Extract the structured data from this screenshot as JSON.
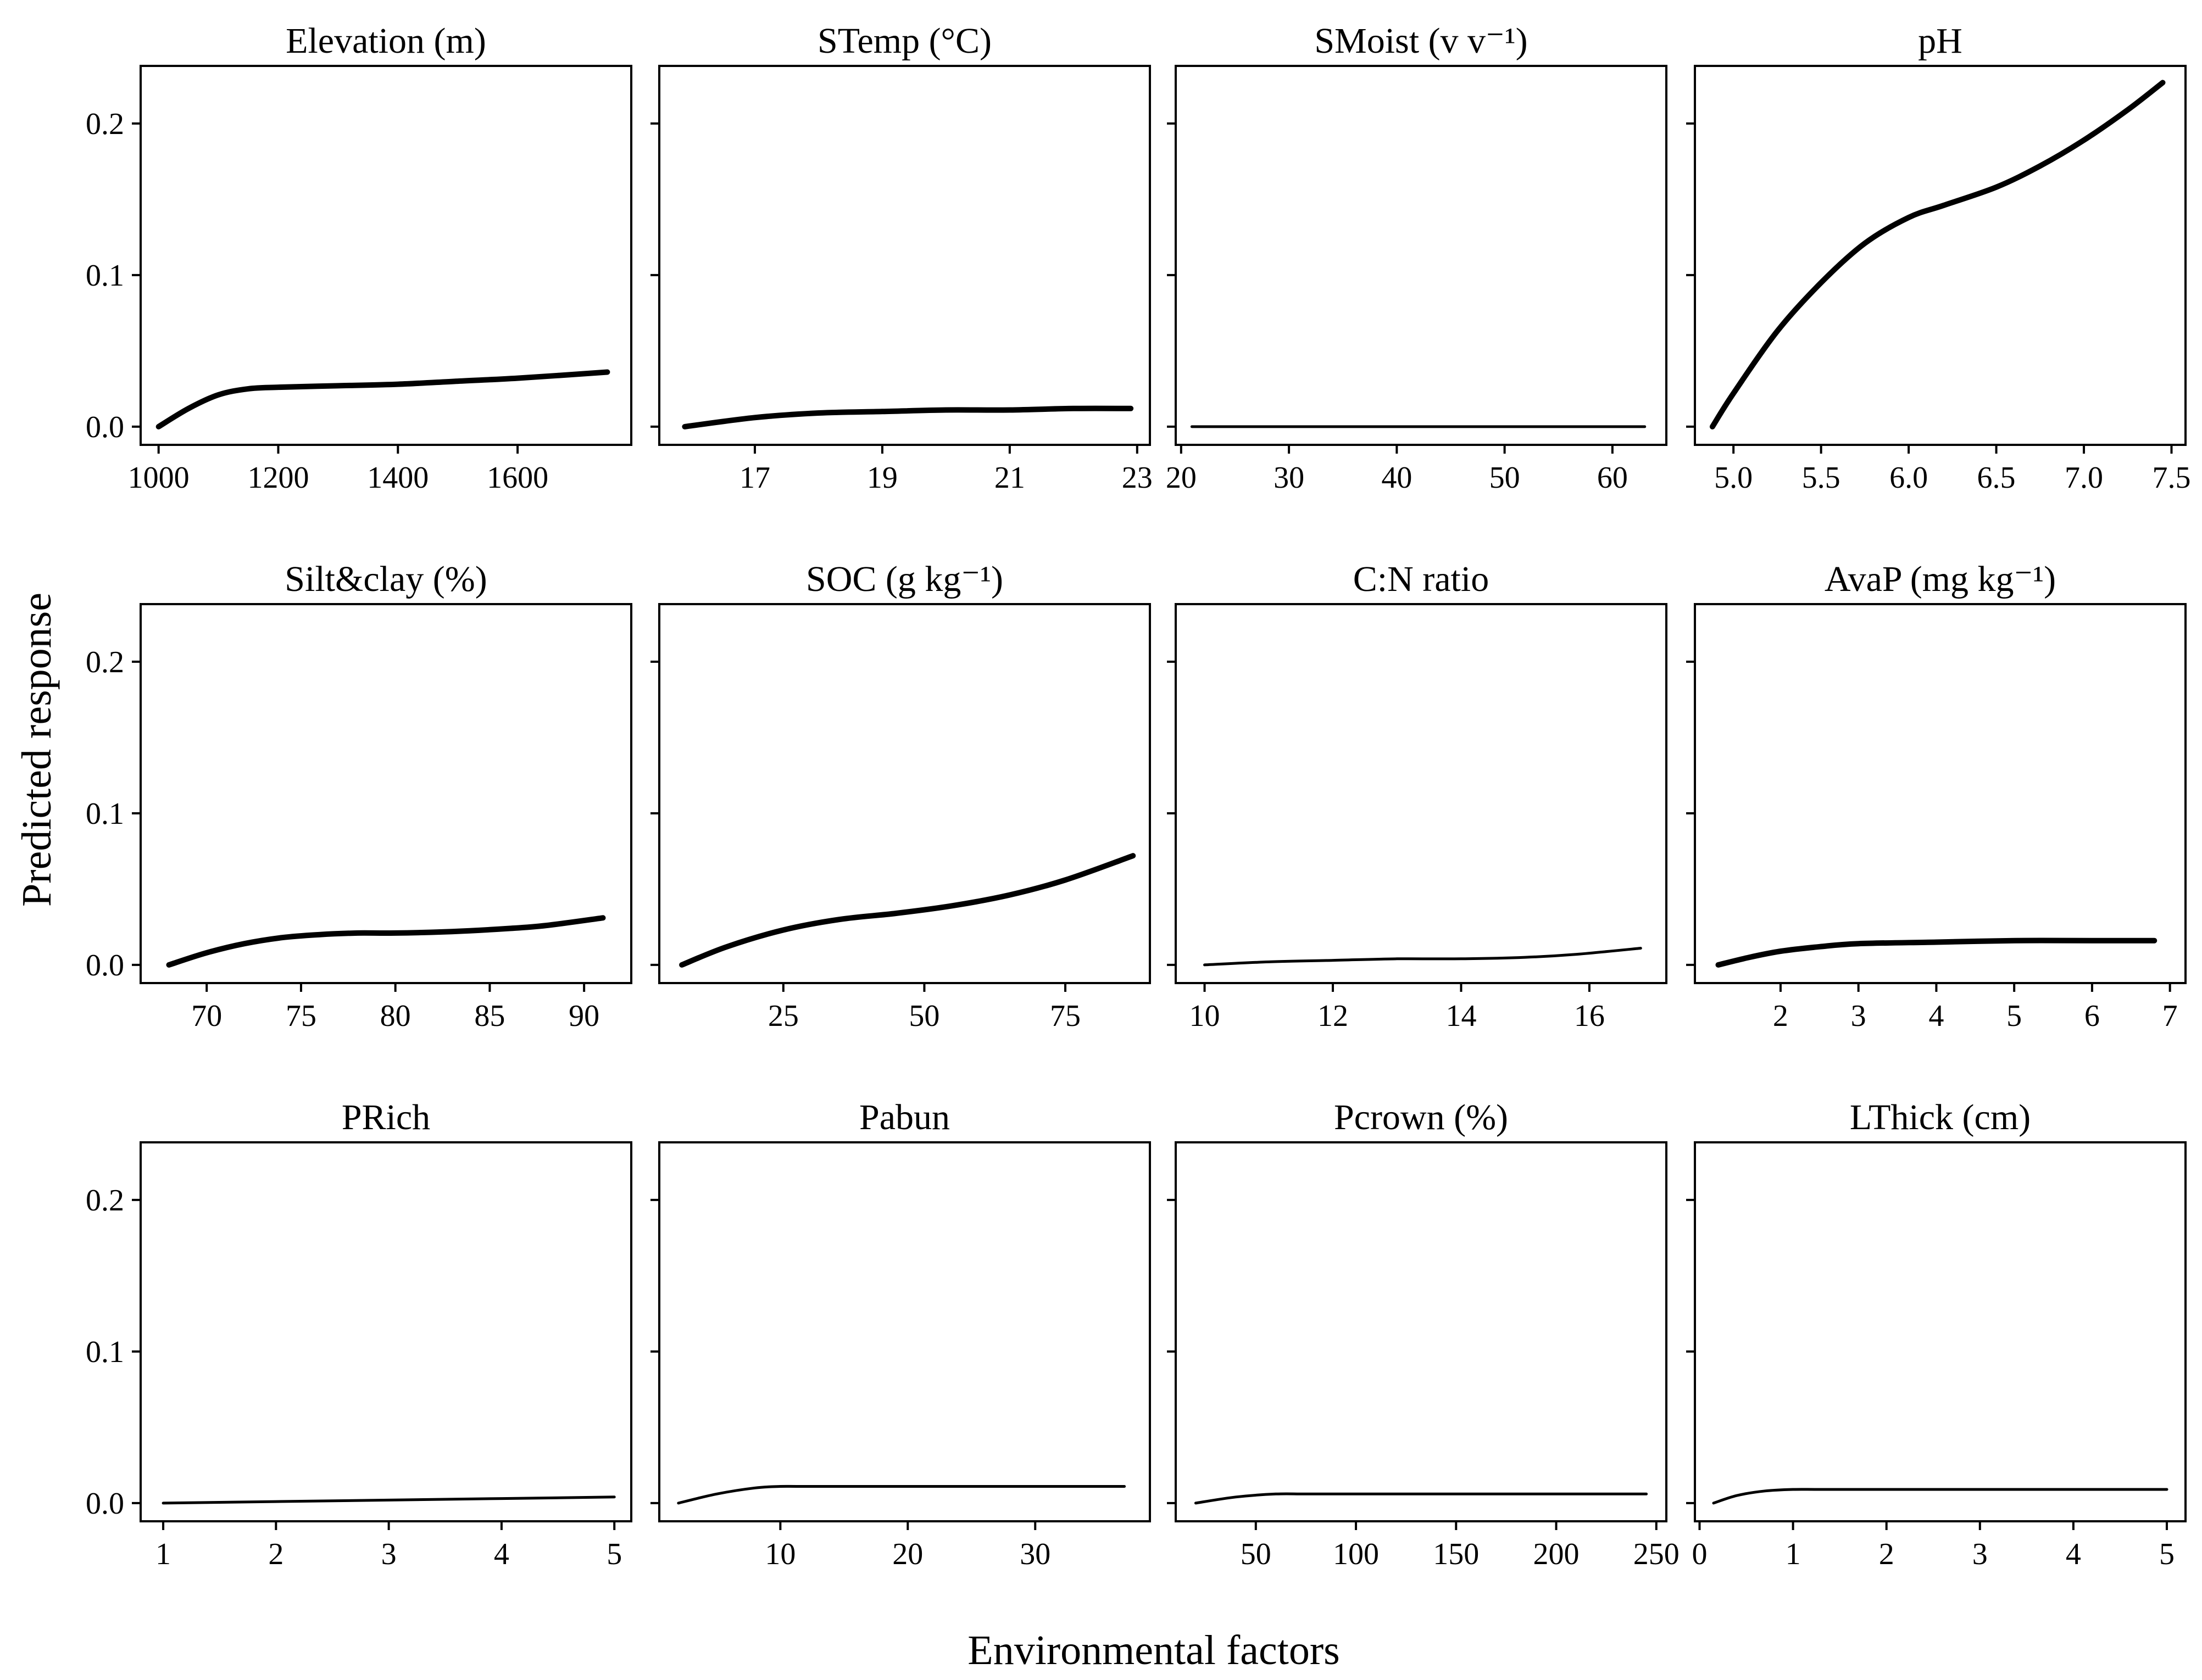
{
  "figure": {
    "x_axis_title": "Environmental factors",
    "y_axis_title": "Predicted response"
  },
  "chart_data": [
    {
      "type": "line",
      "title": "Elevation (m)",
      "xlim": [
        970,
        1790
      ],
      "ylim": [
        -0.012,
        0.238
      ],
      "xticks": [
        1000,
        1200,
        1400,
        1600
      ],
      "yticks": [
        0.0,
        0.1,
        0.2
      ],
      "ytick_labels": [
        "0.0",
        "0.1",
        "0.2"
      ],
      "line": "thick",
      "x": [
        1000,
        1050,
        1100,
        1150,
        1200,
        1300,
        1400,
        1500,
        1600,
        1750
      ],
      "y": [
        0.0,
        0.012,
        0.021,
        0.025,
        0.026,
        0.027,
        0.028,
        0.03,
        0.032,
        0.036
      ]
    },
    {
      "type": "line",
      "title": "STemp (°C)",
      "xlim": [
        15.5,
        23.2
      ],
      "ylim": [
        -0.012,
        0.238
      ],
      "xticks": [
        17,
        19,
        21,
        23
      ],
      "yticks": [
        0.0,
        0.1,
        0.2
      ],
      "ytick_labels": [
        "0.0",
        "0.1",
        "0.2"
      ],
      "line": "thick",
      "x": [
        15.9,
        17,
        18,
        19,
        20,
        21,
        22,
        22.9
      ],
      "y": [
        0.0,
        0.006,
        0.009,
        0.01,
        0.011,
        0.011,
        0.012,
        0.012
      ]
    },
    {
      "type": "line",
      "title": "SMoist (v v⁻¹)",
      "xlim": [
        19.5,
        65
      ],
      "ylim": [
        -0.012,
        0.238
      ],
      "xticks": [
        20,
        30,
        40,
        50,
        60
      ],
      "yticks": [
        0.0,
        0.1,
        0.2
      ],
      "ytick_labels": [
        "0.0",
        "0.1",
        "0.2"
      ],
      "line": "thin",
      "x": [
        21,
        63
      ],
      "y": [
        0.0,
        0.0
      ]
    },
    {
      "type": "line",
      "title": "pH",
      "xlim": [
        4.78,
        7.58
      ],
      "ylim": [
        -0.012,
        0.238
      ],
      "xticks": [
        5.0,
        5.5,
        6.0,
        6.5,
        7.0,
        7.5
      ],
      "xtick_labels": [
        "5.0",
        "5.5",
        "6.0",
        "6.5",
        "7.0",
        "7.5"
      ],
      "yticks": [
        0.0,
        0.1,
        0.2
      ],
      "ytick_labels": [
        "0.0",
        "0.1",
        "0.2"
      ],
      "line": "thick",
      "x": [
        4.88,
        5.0,
        5.25,
        5.5,
        5.75,
        6.0,
        6.2,
        6.5,
        6.75,
        7.0,
        7.25,
        7.45
      ],
      "y": [
        0.0,
        0.022,
        0.063,
        0.095,
        0.121,
        0.138,
        0.146,
        0.158,
        0.172,
        0.189,
        0.209,
        0.227
      ]
    },
    {
      "type": "line",
      "title": "Silt&clay (%)",
      "xlim": [
        66.5,
        92.5
      ],
      "ylim": [
        -0.012,
        0.238
      ],
      "xticks": [
        70,
        75,
        80,
        85,
        90
      ],
      "yticks": [
        0.0,
        0.1,
        0.2
      ],
      "ytick_labels": [
        "0.0",
        "0.1",
        "0.2"
      ],
      "line": "thick",
      "x": [
        68,
        70,
        72,
        74,
        76,
        78,
        80,
        83,
        86,
        88,
        91
      ],
      "y": [
        0.0,
        0.008,
        0.014,
        0.018,
        0.02,
        0.021,
        0.021,
        0.022,
        0.024,
        0.026,
        0.031
      ]
    },
    {
      "type": "line",
      "title": "SOC (g kg⁻¹)",
      "xlim": [
        3,
        90
      ],
      "ylim": [
        -0.012,
        0.238
      ],
      "xticks": [
        25,
        50,
        75
      ],
      "yticks": [
        0.0,
        0.1,
        0.2
      ],
      "ytick_labels": [
        "0.0",
        "0.1",
        "0.2"
      ],
      "line": "thick",
      "x": [
        7,
        15,
        25,
        35,
        45,
        55,
        65,
        75,
        87
      ],
      "y": [
        0.0,
        0.012,
        0.023,
        0.03,
        0.034,
        0.039,
        0.046,
        0.056,
        0.072
      ]
    },
    {
      "type": "line",
      "title": "C:N ratio",
      "xlim": [
        9.55,
        17.2
      ],
      "ylim": [
        -0.012,
        0.238
      ],
      "xticks": [
        10,
        12,
        14,
        16
      ],
      "yticks": [
        0.0,
        0.1,
        0.2
      ],
      "ytick_labels": [
        "0.0",
        "0.1",
        "0.2"
      ],
      "line": "thin",
      "x": [
        10,
        11,
        12,
        13,
        14,
        15,
        15.8,
        16.8
      ],
      "y": [
        0.0,
        0.002,
        0.003,
        0.004,
        0.004,
        0.005,
        0.007,
        0.011
      ]
    },
    {
      "type": "line",
      "title": "AvaP (mg kg⁻¹)",
      "xlim": [
        0.9,
        7.2
      ],
      "ylim": [
        -0.012,
        0.238
      ],
      "xticks": [
        2,
        3,
        4,
        5,
        6,
        7
      ],
      "yticks": [
        0.0,
        0.1,
        0.2
      ],
      "ytick_labels": [
        "0.0",
        "0.1",
        "0.2"
      ],
      "line": "thick",
      "x": [
        1.2,
        1.6,
        2,
        2.5,
        3,
        4,
        5,
        6,
        6.8
      ],
      "y": [
        0.0,
        0.005,
        0.009,
        0.012,
        0.014,
        0.015,
        0.016,
        0.016,
        0.016
      ]
    },
    {
      "type": "line",
      "title": "PRich",
      "xlim": [
        0.8,
        5.15
      ],
      "ylim": [
        -0.012,
        0.238
      ],
      "xticks": [
        1,
        2,
        3,
        4,
        5
      ],
      "yticks": [
        0.0,
        0.1,
        0.2
      ],
      "ytick_labels": [
        "0.0",
        "0.1",
        "0.2"
      ],
      "line": "thin",
      "x": [
        1,
        2,
        3,
        4,
        5
      ],
      "y": [
        0.0,
        0.001,
        0.002,
        0.003,
        0.004
      ]
    },
    {
      "type": "line",
      "title": "Pabun",
      "xlim": [
        0.5,
        39
      ],
      "ylim": [
        -0.012,
        0.238
      ],
      "xticks": [
        10,
        20,
        30
      ],
      "yticks": [
        0.0,
        0.1,
        0.2
      ],
      "ytick_labels": [
        "0.0",
        "0.1",
        "0.2"
      ],
      "line": "thin",
      "x": [
        2,
        5,
        8,
        10,
        12,
        20,
        30,
        37
      ],
      "y": [
        0.0,
        0.006,
        0.01,
        0.011,
        0.011,
        0.011,
        0.011,
        0.011
      ]
    },
    {
      "type": "line",
      "title": "Pcrown (%)",
      "xlim": [
        10,
        255
      ],
      "ylim": [
        -0.012,
        0.238
      ],
      "xticks": [
        50,
        100,
        150,
        200,
        250
      ],
      "yticks": [
        0.0,
        0.1,
        0.2
      ],
      "ytick_labels": [
        "0.0",
        "0.1",
        "0.2"
      ],
      "line": "thin",
      "x": [
        20,
        40,
        60,
        75,
        100,
        150,
        200,
        245
      ],
      "y": [
        0.0,
        0.004,
        0.006,
        0.006,
        0.006,
        0.006,
        0.006,
        0.006
      ]
    },
    {
      "type": "line",
      "title": "LThick (cm)",
      "xlim": [
        -0.05,
        5.2
      ],
      "ylim": [
        -0.012,
        0.238
      ],
      "xticks": [
        0,
        1,
        2,
        3,
        4,
        5
      ],
      "yticks": [
        0.0,
        0.1,
        0.2
      ],
      "ytick_labels": [
        "0.0",
        "0.1",
        "0.2"
      ],
      "line": "thin",
      "x": [
        0.15,
        0.4,
        0.7,
        1.0,
        1.3,
        2,
        3,
        4,
        5
      ],
      "y": [
        0.0,
        0.005,
        0.008,
        0.009,
        0.009,
        0.009,
        0.009,
        0.009,
        0.009
      ]
    }
  ]
}
